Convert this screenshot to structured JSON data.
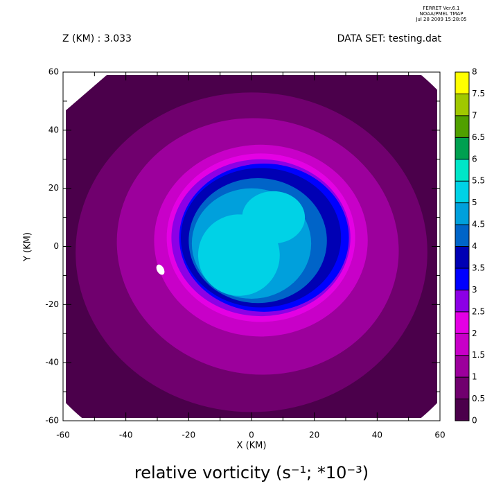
{
  "header": {
    "program": "FERRET  Ver.6.1",
    "org": "NOAA/PMEL TMAP",
    "date": "Jul 28 2009 15:28:05"
  },
  "chart_data": {
    "type": "contour",
    "title": "relative vorticity (s⁻¹; *10⁻³)",
    "subtitle_left": "Z (KM) : 3.033",
    "subtitle_right": "DATA SET: testing.dat",
    "x_label": "X (KM)",
    "y_label": "Y (KM)",
    "xlim": [
      -60,
      60
    ],
    "ylim": [
      -60,
      60
    ],
    "xticks": [
      -60,
      -40,
      -20,
      0,
      20,
      40,
      60
    ],
    "yticks": [
      -60,
      -40,
      -20,
      0,
      20,
      40,
      60
    ],
    "levels": [
      0,
      0.5,
      1,
      1.5,
      2,
      2.5,
      3,
      3.5,
      4,
      4.5,
      5,
      5.5,
      6,
      6.5,
      7,
      7.5,
      8
    ],
    "colors": [
      "#4b004b",
      "#70006e",
      "#9c009c",
      "#c800c8",
      "#e400e4",
      "#8c00e6",
      "#0000ff",
      "#0000b4",
      "#0064c8",
      "#00a0dc",
      "#00d2e6",
      "#00e6c8",
      "#00a050",
      "#50a000",
      "#a0c800",
      "#ffff00"
    ]
  }
}
